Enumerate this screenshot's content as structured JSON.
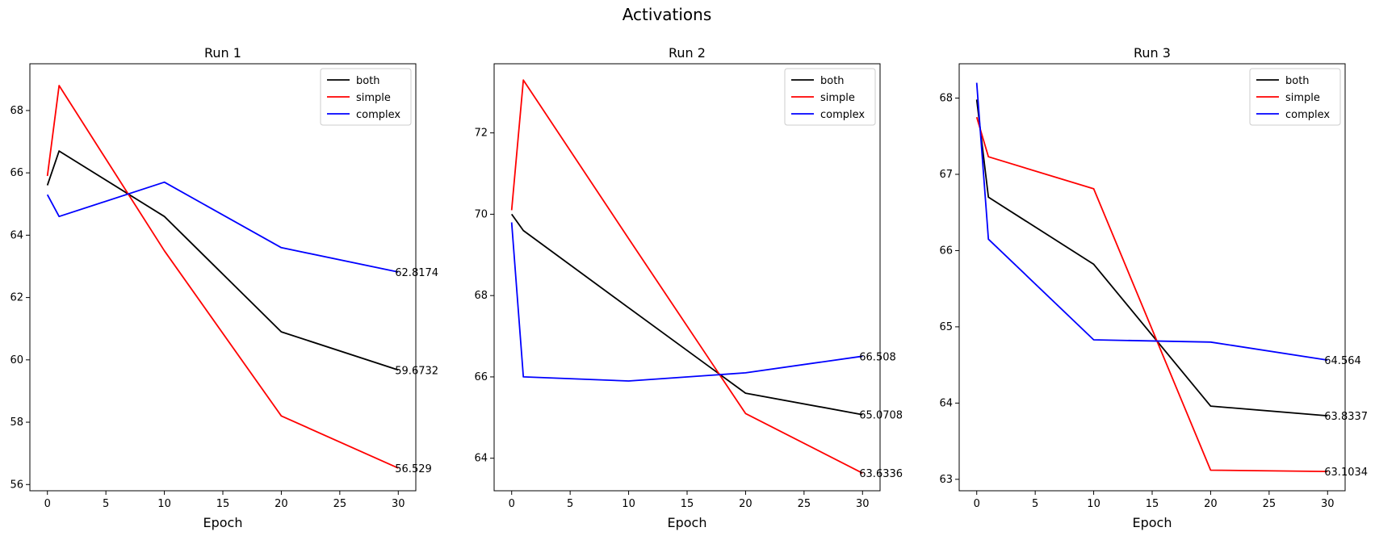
{
  "figure_title": "Activations",
  "series_colors": {
    "both": "#000000",
    "simple": "#ff0000",
    "complex": "#0000ff"
  },
  "chart_data": [
    {
      "type": "line",
      "title": "Run 1",
      "xlabel": "Epoch",
      "ylabel": "",
      "xlim": [
        -1.5,
        31.5
      ],
      "ylim": [
        55.8,
        69.5
      ],
      "xticks": [
        0,
        5,
        10,
        15,
        20,
        25,
        30
      ],
      "yticks": [
        56,
        58,
        60,
        62,
        64,
        66,
        68
      ],
      "grid": false,
      "legend": "top-right",
      "x": [
        0,
        1,
        10,
        20,
        30
      ],
      "series": [
        {
          "name": "both",
          "color": "#000000",
          "values": [
            65.6,
            66.7,
            64.6,
            60.9,
            59.6732
          ],
          "end_label": "59.6732"
        },
        {
          "name": "simple",
          "color": "#ff0000",
          "values": [
            65.9,
            68.8,
            63.5,
            58.2,
            56.529
          ],
          "end_label": "56.529"
        },
        {
          "name": "complex",
          "color": "#0000ff",
          "values": [
            65.3,
            64.6,
            65.7,
            63.6,
            62.8174
          ],
          "end_label": "62.8174"
        }
      ]
    },
    {
      "type": "line",
      "title": "Run 2",
      "xlabel": "Epoch",
      "ylabel": "",
      "xlim": [
        -1.5,
        31.5
      ],
      "ylim": [
        63.2,
        73.7
      ],
      "xticks": [
        0,
        5,
        10,
        15,
        20,
        25,
        30
      ],
      "yticks": [
        64,
        66,
        68,
        70,
        72
      ],
      "grid": false,
      "legend": "top-right",
      "x": [
        0,
        1,
        10,
        20,
        30
      ],
      "series": [
        {
          "name": "both",
          "color": "#000000",
          "values": [
            70.0,
            69.6,
            67.7,
            65.6,
            65.0708
          ],
          "end_label": "65.0708"
        },
        {
          "name": "simple",
          "color": "#ff0000",
          "values": [
            70.1,
            73.3,
            69.4,
            65.1,
            63.6336
          ],
          "end_label": "63.6336"
        },
        {
          "name": "complex",
          "color": "#0000ff",
          "values": [
            69.8,
            66.0,
            65.9,
            66.1,
            66.508
          ],
          "end_label": "66.508"
        }
      ]
    },
    {
      "type": "line",
      "title": "Run 3",
      "xlabel": "Epoch",
      "ylabel": "",
      "xlim": [
        -1.5,
        31.5
      ],
      "ylim": [
        62.85,
        68.45
      ],
      "xticks": [
        0,
        5,
        10,
        15,
        20,
        25,
        30
      ],
      "yticks": [
        63,
        64,
        65,
        66,
        67,
        68
      ],
      "grid": false,
      "legend": "top-right",
      "x": [
        0,
        1,
        10,
        20,
        30
      ],
      "series": [
        {
          "name": "both",
          "color": "#000000",
          "values": [
            67.98,
            66.7,
            65.82,
            63.96,
            63.8337
          ],
          "end_label": "63.8337"
        },
        {
          "name": "simple",
          "color": "#ff0000",
          "values": [
            67.75,
            67.23,
            66.81,
            63.12,
            63.1034
          ],
          "end_label": "63.1034"
        },
        {
          "name": "complex",
          "color": "#0000ff",
          "values": [
            68.2,
            66.15,
            64.83,
            64.8,
            64.564
          ],
          "end_label": "64.564"
        }
      ]
    }
  ]
}
